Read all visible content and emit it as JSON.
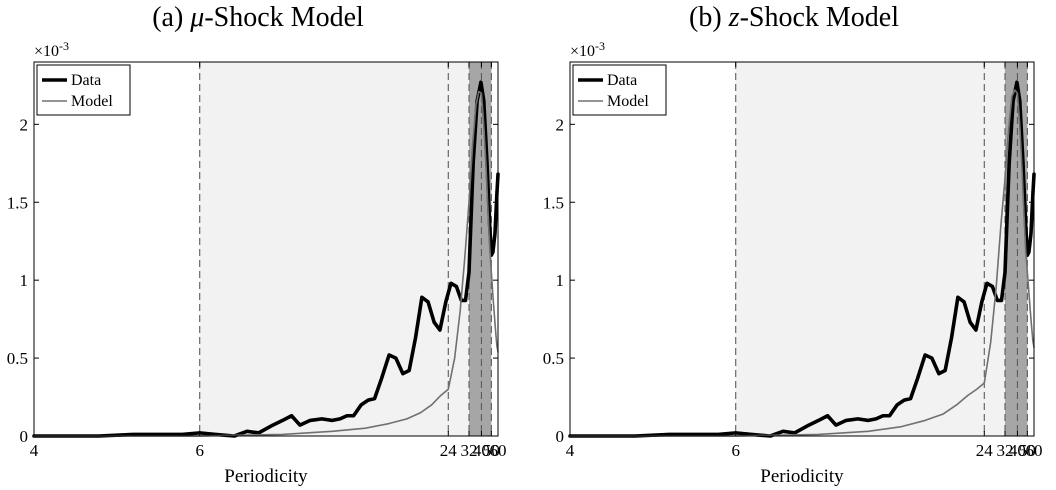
{
  "chart_data": [
    {
      "type": "line",
      "title_prefix": "(a) ",
      "title_symbol": "μ",
      "title_suffix": "-Shock Model",
      "xlabel": "Periodicity",
      "ylabel": "",
      "y_exponent_label": "×10",
      "y_exponent": "-3",
      "x_scale": "reciprocal",
      "x_ticks": [
        4,
        6,
        24,
        32,
        40,
        50,
        60
      ],
      "y_ticks": [
        0,
        0.5,
        1,
        1.5,
        2
      ],
      "y_tick_labels": [
        "0",
        "0.5",
        "1",
        "1.5",
        "2"
      ],
      "xlim": [
        4,
        60
      ],
      "ylim": [
        0,
        2.4
      ],
      "legend_position": "top-left",
      "shaded_bands": [
        {
          "from": 6,
          "to": 32,
          "shade": "light"
        },
        {
          "from": 32,
          "to": 50,
          "shade": "dark"
        }
      ],
      "vertical_lines": [
        6,
        24,
        32,
        40,
        50
      ],
      "series": [
        {
          "name": "Data",
          "color": "#000000",
          "x": [
            4,
            4.3,
            4.6,
            5,
            5.4,
            5.7,
            6,
            6.3,
            6.7,
            7.0,
            7.3,
            7.7,
            8.0,
            8.3,
            8.6,
            9.0,
            9.5,
            10.0,
            10.4,
            10.8,
            11.2,
            11.7,
            12.2,
            12.7,
            13.3,
            14.0,
            14.7,
            15.5,
            16.3,
            17.2,
            18.2,
            19.3,
            20.5,
            21.8,
            23.3,
            24.8,
            26.6,
            28.5,
            30.3,
            32.0,
            34.3,
            36.8,
            39.6,
            42.0,
            45.0,
            48.0,
            50.0,
            52.0,
            55.0,
            58.0,
            60.0
          ],
          "y": [
            0.0,
            0.0,
            0.0,
            0.01,
            0.01,
            0.01,
            0.02,
            0.01,
            0.0,
            0.03,
            0.02,
            0.07,
            0.1,
            0.13,
            0.07,
            0.1,
            0.11,
            0.1,
            0.11,
            0.13,
            0.13,
            0.2,
            0.23,
            0.24,
            0.37,
            0.52,
            0.5,
            0.4,
            0.42,
            0.63,
            0.89,
            0.86,
            0.73,
            0.68,
            0.86,
            0.98,
            0.96,
            0.87,
            0.87,
            1.05,
            1.75,
            2.15,
            2.27,
            2.15,
            1.76,
            1.35,
            1.16,
            1.18,
            1.3,
            1.55,
            1.68
          ]
        },
        {
          "name": "Model",
          "color": "#707070",
          "x": [
            4,
            6,
            8,
            10,
            12,
            14,
            16,
            18,
            20,
            22,
            24,
            26,
            28,
            30,
            32,
            34,
            36,
            38,
            40,
            42,
            44,
            46,
            48,
            50,
            52,
            54,
            56,
            58,
            60
          ],
          "y": [
            0.0,
            0.0,
            0.01,
            0.03,
            0.05,
            0.08,
            0.11,
            0.15,
            0.2,
            0.26,
            0.3,
            0.5,
            0.8,
            1.15,
            1.5,
            1.87,
            2.12,
            2.21,
            2.2,
            1.99,
            1.74,
            1.46,
            1.21,
            1.05,
            0.9,
            0.78,
            0.67,
            0.58,
            0.54
          ]
        }
      ]
    },
    {
      "type": "line",
      "title_prefix": "(b) ",
      "title_symbol": "z",
      "title_suffix": "-Shock Model",
      "xlabel": "Periodicity",
      "ylabel": "",
      "y_exponent_label": "×10",
      "y_exponent": "-3",
      "x_scale": "reciprocal",
      "x_ticks": [
        4,
        6,
        24,
        32,
        40,
        50,
        60
      ],
      "y_ticks": [
        0,
        0.5,
        1,
        1.5,
        2
      ],
      "y_tick_labels": [
        "0",
        "0.5",
        "1",
        "1.5",
        "2"
      ],
      "xlim": [
        4,
        60
      ],
      "ylim": [
        0,
        2.4
      ],
      "legend_position": "top-left",
      "shaded_bands": [
        {
          "from": 6,
          "to": 32,
          "shade": "light"
        },
        {
          "from": 32,
          "to": 50,
          "shade": "dark"
        }
      ],
      "vertical_lines": [
        6,
        24,
        32,
        40,
        50
      ],
      "series": [
        {
          "name": "Data",
          "color": "#000000",
          "x": [
            4,
            4.3,
            4.6,
            5,
            5.4,
            5.7,
            6,
            6.3,
            6.7,
            7.0,
            7.3,
            7.7,
            8.0,
            8.3,
            8.6,
            9.0,
            9.5,
            10.0,
            10.4,
            10.8,
            11.2,
            11.7,
            12.2,
            12.7,
            13.3,
            14.0,
            14.7,
            15.5,
            16.3,
            17.2,
            18.2,
            19.3,
            20.5,
            21.8,
            23.3,
            24.8,
            26.6,
            28.5,
            30.3,
            32.0,
            34.3,
            36.8,
            39.6,
            42.0,
            45.0,
            48.0,
            50.0,
            52.0,
            55.0,
            58.0,
            60.0
          ],
          "y": [
            0.0,
            0.0,
            0.0,
            0.01,
            0.01,
            0.01,
            0.02,
            0.01,
            0.0,
            0.03,
            0.02,
            0.07,
            0.1,
            0.13,
            0.07,
            0.1,
            0.11,
            0.1,
            0.11,
            0.13,
            0.13,
            0.2,
            0.23,
            0.24,
            0.37,
            0.52,
            0.5,
            0.4,
            0.42,
            0.63,
            0.89,
            0.86,
            0.73,
            0.68,
            0.86,
            0.98,
            0.96,
            0.87,
            0.87,
            1.05,
            1.75,
            2.15,
            2.27,
            2.15,
            1.76,
            1.35,
            1.16,
            1.18,
            1.3,
            1.55,
            1.68
          ]
        },
        {
          "name": "Model",
          "color": "#707070",
          "x": [
            4,
            6,
            8,
            10,
            12,
            14,
            16,
            18,
            20,
            22,
            24,
            26,
            28,
            30,
            32,
            34,
            36,
            38,
            40,
            42,
            44,
            46,
            48,
            50,
            52,
            54,
            56,
            58,
            60
          ],
          "y": [
            0.0,
            0.0,
            0.01,
            0.03,
            0.06,
            0.1,
            0.14,
            0.2,
            0.26,
            0.3,
            0.34,
            0.6,
            0.95,
            1.35,
            1.65,
            1.97,
            2.18,
            2.22,
            2.2,
            1.99,
            1.72,
            1.43,
            1.19,
            1.05,
            0.92,
            0.8,
            0.7,
            0.61,
            0.57
          ]
        }
      ]
    }
  ]
}
